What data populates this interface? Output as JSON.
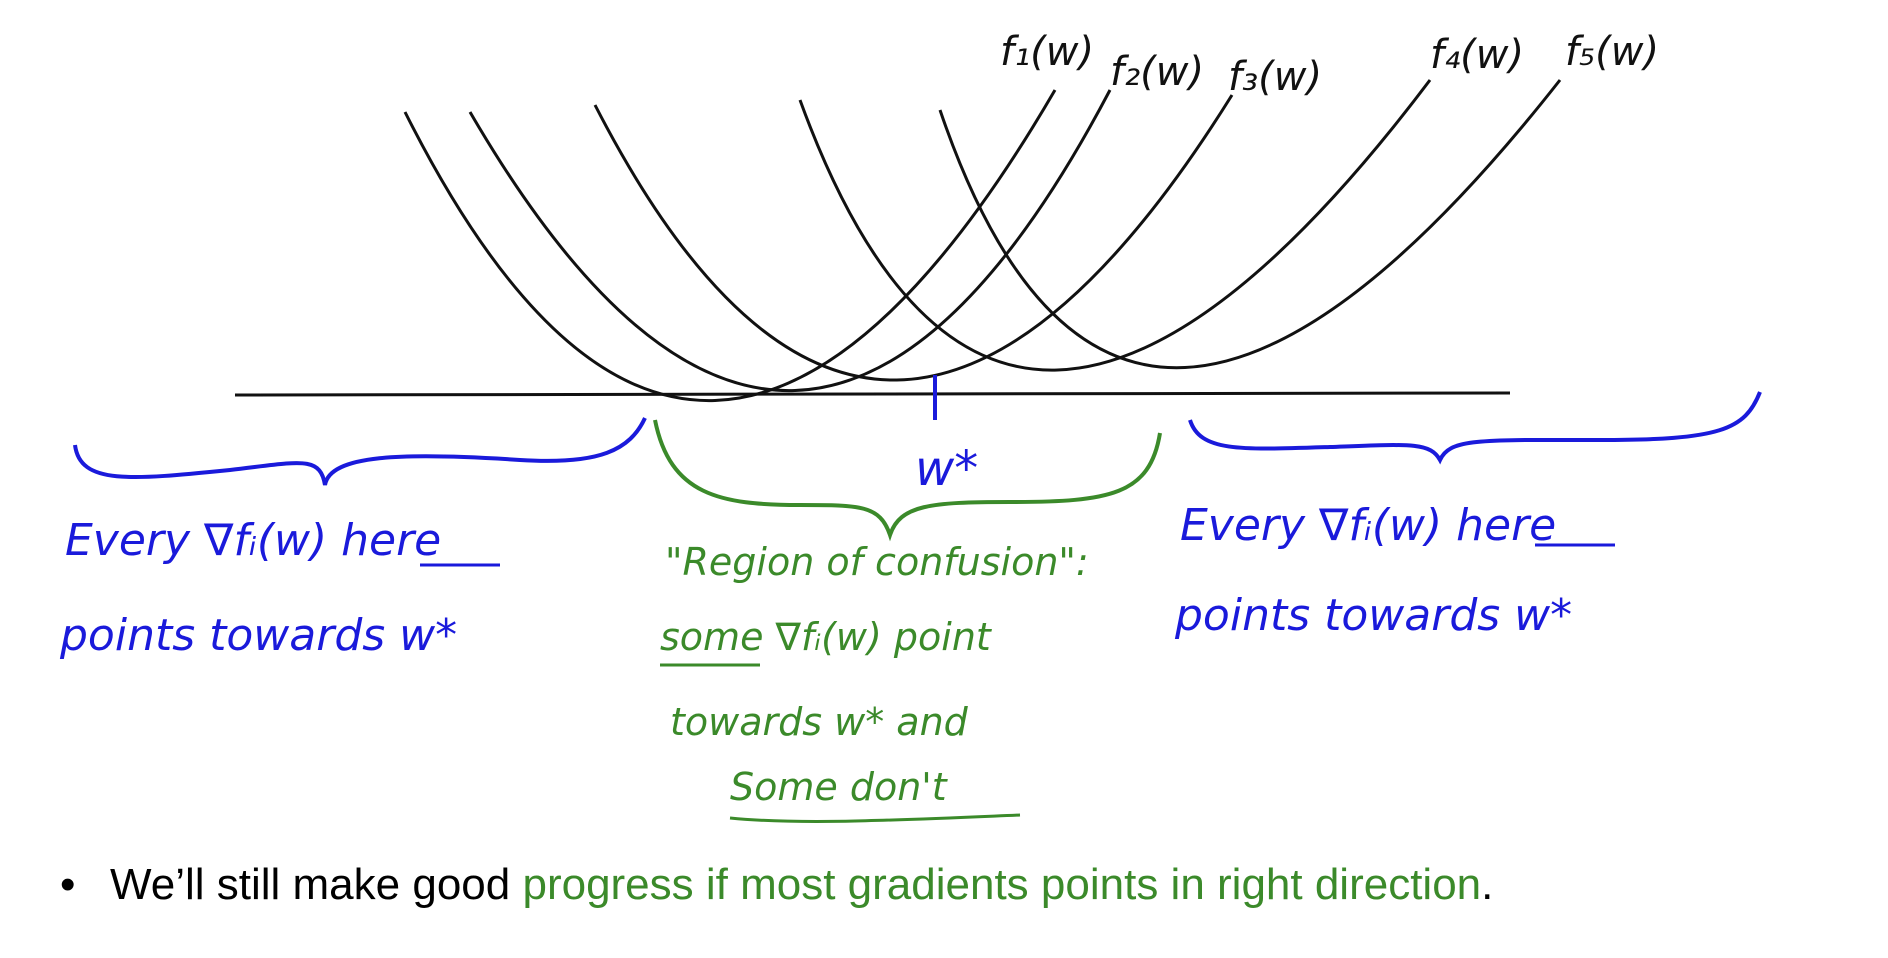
{
  "colors": {
    "ink": "#111111",
    "blue": "#1a1adb",
    "green": "#3b8a2a"
  },
  "curves": [
    {
      "label": "f₁(w)",
      "sub": "1"
    },
    {
      "label": "f₂(w)",
      "sub": "2"
    },
    {
      "label": "f₃(w)",
      "sub": "3"
    },
    {
      "label": "f₄(w)",
      "sub": "4"
    },
    {
      "label": "f₅(w)",
      "sub": "5"
    }
  ],
  "minimizer_label": "w*",
  "left_region": {
    "line1": "Every ∇fᵢ(w) here",
    "line2": "points towards w*"
  },
  "right_region": {
    "line1": "Every ∇fᵢ(w) here",
    "line2": "points towards w*"
  },
  "confusion": {
    "line1": "\"Region of confusion\":",
    "line2": "some ∇fᵢ(w) point",
    "line3": "towards w* and",
    "line4": "Some don't"
  },
  "bullet": {
    "marker": "•",
    "text_black": "We’ll still make good ",
    "text_green": "progress if most gradients points in right direction",
    "text_end": "."
  }
}
